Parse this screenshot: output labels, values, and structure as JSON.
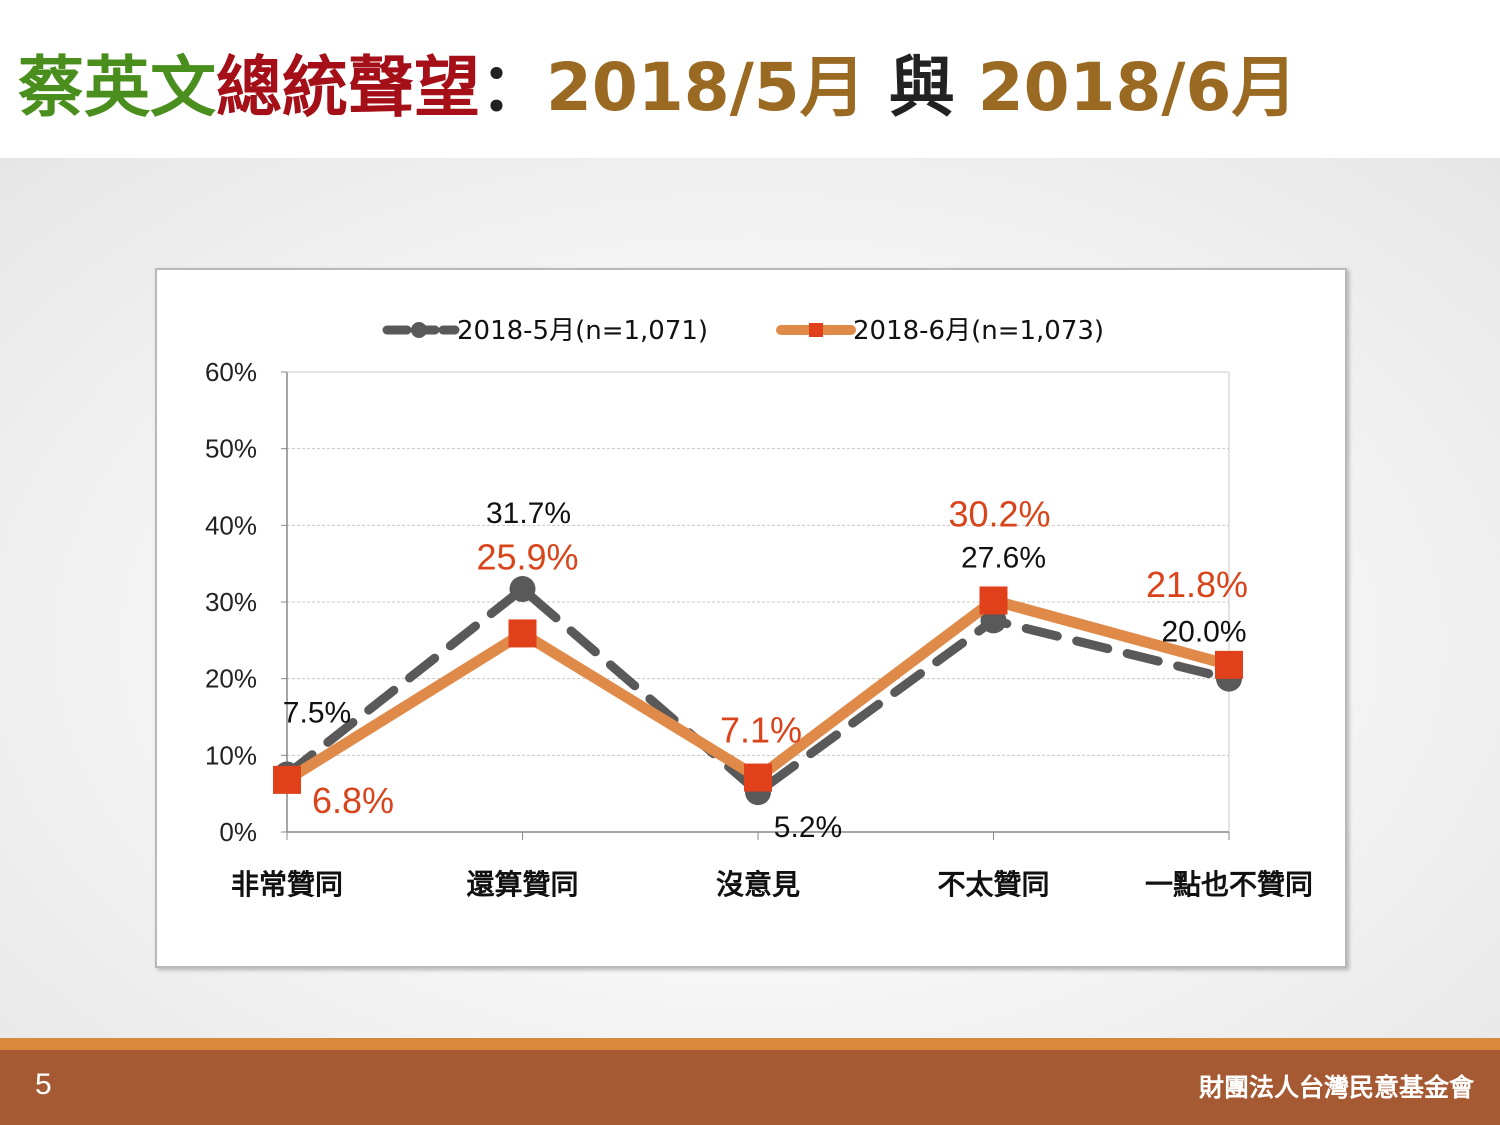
{
  "title": {
    "part1": "蔡英文",
    "part2": "總統聲望",
    "colon": "：",
    "date1": "2018/5月",
    "conj": "與",
    "date2": "2018/6月"
  },
  "footer": {
    "page_number": "5",
    "organization": "財團法人台灣民意基金會"
  },
  "colors": {
    "title_green": "#4a8f1e",
    "title_red": "#a50f18",
    "title_gold": "#9a6a22",
    "series_may": "#595959",
    "series_june_line": "#e08a4a",
    "series_june_marker": "#e0401a",
    "footer_bg": "#a65a33"
  },
  "chart_data": {
    "type": "line",
    "categories": [
      "非常贊同",
      "還算贊同",
      "沒意見",
      "不太贊同",
      "一點也不贊同"
    ],
    "series": [
      {
        "name": "2018-5月(n=1,071)",
        "values": [
          7.5,
          31.7,
          5.2,
          27.6,
          20.0
        ],
        "labels": [
          "7.5%",
          "31.7%",
          "5.2%",
          "27.6%",
          "20.0%"
        ],
        "style": "dashed-gray-circle"
      },
      {
        "name": "2018-6月(n=1,073)",
        "values": [
          6.8,
          25.9,
          7.1,
          30.2,
          21.8
        ],
        "labels": [
          "6.8%",
          "25.9%",
          "7.1%",
          "30.2%",
          "21.8%"
        ],
        "style": "solid-orange-square"
      }
    ],
    "ylim": [
      0,
      60
    ],
    "yticks": [
      "0%",
      "10%",
      "20%",
      "30%",
      "40%",
      "50%",
      "60%"
    ],
    "grid": true,
    "legend_position": "top"
  }
}
